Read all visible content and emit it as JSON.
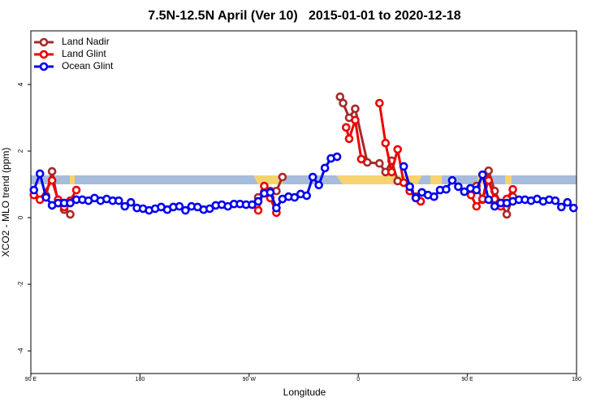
{
  "chart_data": {
    "type": "line",
    "title": "7.5N-12.5N April (Ver 10)   2015-01-01 to 2020-12-18",
    "xlabel": "Longitude",
    "ylabel": "XCO2 - MLO trend (ppm)",
    "xlim": [
      90,
      540
    ],
    "xticks": [
      {
        "value": 90,
        "label": "90 E"
      },
      {
        "value": 180,
        "label": "180"
      },
      {
        "value": 270,
        "label": "90 W"
      },
      {
        "value": 360,
        "label": "0"
      },
      {
        "value": 450,
        "label": "90 E"
      },
      {
        "value": 540,
        "label": "180"
      }
    ],
    "ylim": [
      -4.68,
      5.61
    ],
    "yticks": [
      -4,
      -2,
      0,
      2,
      4
    ],
    "legend": "top-left",
    "series": [
      {
        "name": "Land Nadir",
        "color": "#a52a2a",
        "x": [
          102.5,
          107.5,
          112.5,
          117.5,
          122.5,
          272.5,
          277.5,
          282.5,
          287.5,
          292.5,
          297.5,
          332.5,
          345,
          347.5,
          352.5,
          357.5,
          367.5,
          377.5,
          382.5,
          387.5,
          392.5,
          447.5,
          457.5,
          462.5,
          467.5,
          472.5,
          477.5,
          482.5,
          487.5
        ],
        "values": [
          0.66,
          1.39,
          0.44,
          0.24,
          0.1,
          null,
          0.61,
          0.78,
          0.8,
          0.8,
          1.22,
          null,
          3.63,
          3.44,
          3.0,
          3.27,
          1.66,
          1.63,
          1.37,
          1.71,
          1.1,
          null,
          0.95,
          0.54,
          1.41,
          0.8,
          0.44,
          0.1,
          0.63
        ]
      },
      {
        "name": "Land Glint",
        "color": "#ee0000",
        "x": [
          92.5,
          97.5,
          107.5,
          112.5,
          117.5,
          122.5,
          127.5,
          272.5,
          277.5,
          282.5,
          287.5,
          292.5,
          332.5,
          350,
          352.5,
          357.5,
          362.5,
          372.5,
          377.5,
          382.5,
          387.5,
          392.5,
          397.5,
          402.5,
          407.5,
          411.5,
          447.5,
          453,
          457.5,
          462.5,
          467.5,
          472.5,
          477.5,
          482.5,
          487.5
        ],
        "values": [
          0.68,
          0.54,
          1.12,
          0.54,
          0.32,
          0.51,
          0.83,
          null,
          0.22,
          0.95,
          0.59,
          0.15,
          null,
          2.71,
          2.37,
          2.93,
          1.76,
          null,
          3.44,
          2.24,
          1.37,
          2.05,
          1.05,
          0.8,
          0.63,
          0.49,
          null,
          0.68,
          0.34,
          0.56,
          1.12,
          0.56,
          0.34,
          0.56,
          0.85
        ]
      },
      {
        "name": "Ocean Glint",
        "color": "#0000ee",
        "x": [
          92.5,
          97.5,
          102.5,
          107.5,
          112.5,
          117.5,
          122.5,
          127.5,
          132.5,
          137.5,
          142.5,
          147.5,
          152.5,
          157.5,
          162.5,
          167.5,
          172.5,
          177.5,
          182.5,
          187.5,
          192.5,
          197.5,
          202.5,
          207.5,
          212.5,
          217.5,
          222.5,
          227.5,
          232.5,
          237.5,
          242.5,
          247.5,
          252.5,
          257.5,
          262.5,
          267.5,
          272.5,
          277.5,
          282.5,
          287.5,
          292.5,
          297.5,
          302.5,
          307.5,
          312.5,
          317.5,
          322.5,
          327.5,
          332.5,
          337.5,
          342.5,
          370,
          397.5,
          402.5,
          407.5,
          412.5,
          417.5,
          422.5,
          427.5,
          432.5,
          437.5,
          442.5,
          447.5,
          452.5,
          457.5,
          462.5,
          467.5,
          472.5,
          477.5,
          482.5,
          487.5,
          492.5,
          497.5,
          502.5,
          507.5,
          512.5,
          517.5,
          522.5,
          527.5,
          532.5,
          537.5
        ],
        "values": [
          0.83,
          1.32,
          0.61,
          0.37,
          0.44,
          0.44,
          0.44,
          0.54,
          0.54,
          0.51,
          0.59,
          0.51,
          0.56,
          0.51,
          0.51,
          0.34,
          0.46,
          0.29,
          0.27,
          0.22,
          0.27,
          0.32,
          0.24,
          0.32,
          0.34,
          0.22,
          0.34,
          0.32,
          0.24,
          0.27,
          0.37,
          0.39,
          0.34,
          0.41,
          0.41,
          0.39,
          0.39,
          0.49,
          0.73,
          0.76,
          0.29,
          0.56,
          0.63,
          0.61,
          0.71,
          0.66,
          1.22,
          0.98,
          1.49,
          1.78,
          1.83,
          null,
          1.54,
          0.93,
          0.59,
          0.76,
          0.68,
          0.63,
          0.83,
          0.85,
          1.12,
          0.93,
          0.78,
          0.88,
          0.83,
          1.29,
          0.54,
          0.34,
          0.44,
          0.44,
          0.49,
          0.54,
          0.54,
          0.51,
          0.56,
          0.49,
          0.54,
          0.51,
          0.32,
          0.46,
          0.29
        ]
      }
    ]
  }
}
